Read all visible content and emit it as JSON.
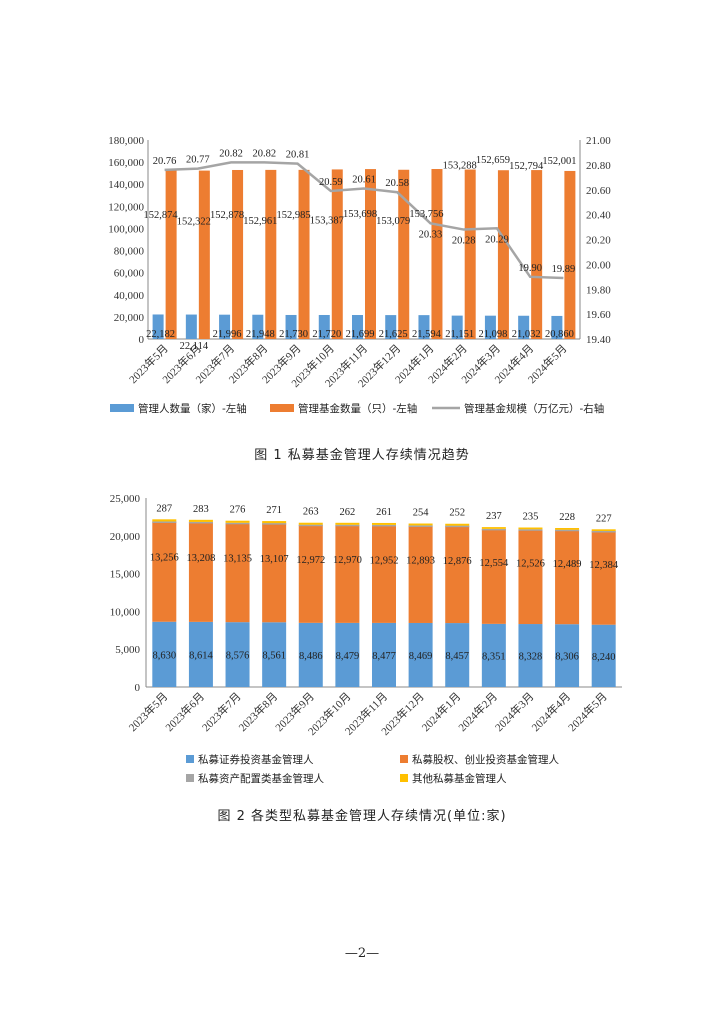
{
  "chart_data": [
    {
      "type": "bar",
      "categories": [
        "2023年5月",
        "2023年6月",
        "2023年7月",
        "2023年8月",
        "2023年9月",
        "2023年10月",
        "2023年11月",
        "2023年12月",
        "2024年1月",
        "2024年2月",
        "2024年3月",
        "2024年4月",
        "2024年5月"
      ],
      "series": [
        {
          "name": "管理人数量（家）-左轴",
          "axis": "left",
          "kind": "bar",
          "values": [
            22182,
            22114,
            21996,
            21948,
            21730,
            21720,
            21699,
            21625,
            21594,
            21151,
            21098,
            21032,
            20860
          ],
          "labels": [
            "22,182",
            "22,114",
            "21,996",
            "21,948",
            "21,730",
            "21,720",
            "21,699",
            "21,625",
            "21,594",
            "21,151",
            "21,098",
            "21,032",
            "20,860"
          ],
          "color": "#5B9BD5"
        },
        {
          "name": "管理基金数量（只）-左轴",
          "axis": "left",
          "kind": "bar",
          "values": [
            152874,
            152322,
            152878,
            152961,
            152985,
            153387,
            153698,
            153079,
            153756,
            153288,
            152659,
            152794,
            152001
          ],
          "labels": [
            "152,874",
            "152,322",
            "152,878",
            "152,961",
            "152,985",
            "153,387",
            "153,698",
            "153,079",
            "153,756",
            "153,288",
            "152,659",
            "152,794",
            "152,001"
          ],
          "color": "#ED7D31"
        },
        {
          "name": "管理基金规模（万亿元）-右轴",
          "axis": "right",
          "kind": "line",
          "values": [
            20.76,
            20.77,
            20.82,
            20.82,
            20.81,
            20.59,
            20.61,
            20.58,
            20.33,
            20.28,
            20.29,
            19.9,
            19.89
          ],
          "labels": [
            "20.76",
            "20.77",
            "20.82",
            "20.82",
            "20.81",
            "20.59",
            "20.61",
            "20.58",
            "20.33",
            "20.28",
            "20.29",
            "19.90",
            "19.89"
          ],
          "color": "#A5A5A5"
        }
      ],
      "left_axis": {
        "min": 0,
        "max": 180000,
        "step": 20000,
        "ticks": [
          "0",
          "20,000",
          "40,000",
          "60,000",
          "80,000",
          "100,000",
          "120,000",
          "140,000",
          "160,000",
          "180,000"
        ]
      },
      "right_axis": {
        "min": 19.4,
        "max": 21.0,
        "step": 0.2,
        "ticks": [
          "19.40",
          "19.60",
          "19.80",
          "20.00",
          "20.20",
          "20.40",
          "20.60",
          "20.80",
          "21.00"
        ]
      },
      "grid": false,
      "legend_position": "bottom",
      "caption": "图 1  私募基金管理人存续情况趋势"
    },
    {
      "type": "bar",
      "stacked": true,
      "categories": [
        "2023年5月",
        "2023年6月",
        "2023年7月",
        "2023年8月",
        "2023年9月",
        "2023年10月",
        "2023年11月",
        "2023年12月",
        "2024年1月",
        "2024年2月",
        "2024年3月",
        "2024年4月",
        "2024年5月"
      ],
      "series": [
        {
          "name": "私募证券投资基金管理人",
          "values": [
            8630,
            8614,
            8576,
            8561,
            8486,
            8479,
            8477,
            8469,
            8457,
            8351,
            8328,
            8306,
            8240
          ],
          "labels": [
            "8,630",
            "8,614",
            "8,576",
            "8,561",
            "8,486",
            "8,479",
            "8,477",
            "8,469",
            "8,457",
            "8,351",
            "8,328",
            "8,306",
            "8,240"
          ],
          "color": "#5B9BD5"
        },
        {
          "name": "私募股权、创业投资基金管理人",
          "values": [
            13256,
            13208,
            13135,
            13107,
            12972,
            12970,
            12952,
            12893,
            12876,
            12554,
            12526,
            12489,
            12384
          ],
          "labels": [
            "13,256",
            "13,208",
            "13,135",
            "13,107",
            "12,972",
            "12,970",
            "12,952",
            "12,893",
            "12,876",
            "12,554",
            "12,526",
            "12,489",
            "12,384"
          ],
          "color": "#ED7D31"
        },
        {
          "name": "私募资产配置类基金管理人",
          "values": [
            9,
            9,
            9,
            9,
            9,
            9,
            9,
            9,
            9,
            9,
            9,
            9,
            9
          ],
          "color": "#A5A5A5"
        },
        {
          "name": "其他私募基金管理人",
          "values": [
            287,
            283,
            276,
            271,
            263,
            262,
            261,
            254,
            252,
            237,
            235,
            228,
            227
          ],
          "labels": [
            "287",
            "283",
            "276",
            "271",
            "263",
            "262",
            "261",
            "254",
            "252",
            "237",
            "235",
            "228",
            "227"
          ],
          "color": "#FFC000"
        }
      ],
      "y_axis": {
        "min": 0,
        "max": 25000,
        "step": 5000,
        "ticks": [
          "0",
          "5,000",
          "10,000",
          "15,000",
          "20,000",
          "25,000"
        ]
      },
      "grid": false,
      "legend_position": "bottom",
      "caption": "图 2  各类型私募基金管理人存续情况(单位:家)"
    }
  ],
  "page": {
    "number": "—2—"
  }
}
